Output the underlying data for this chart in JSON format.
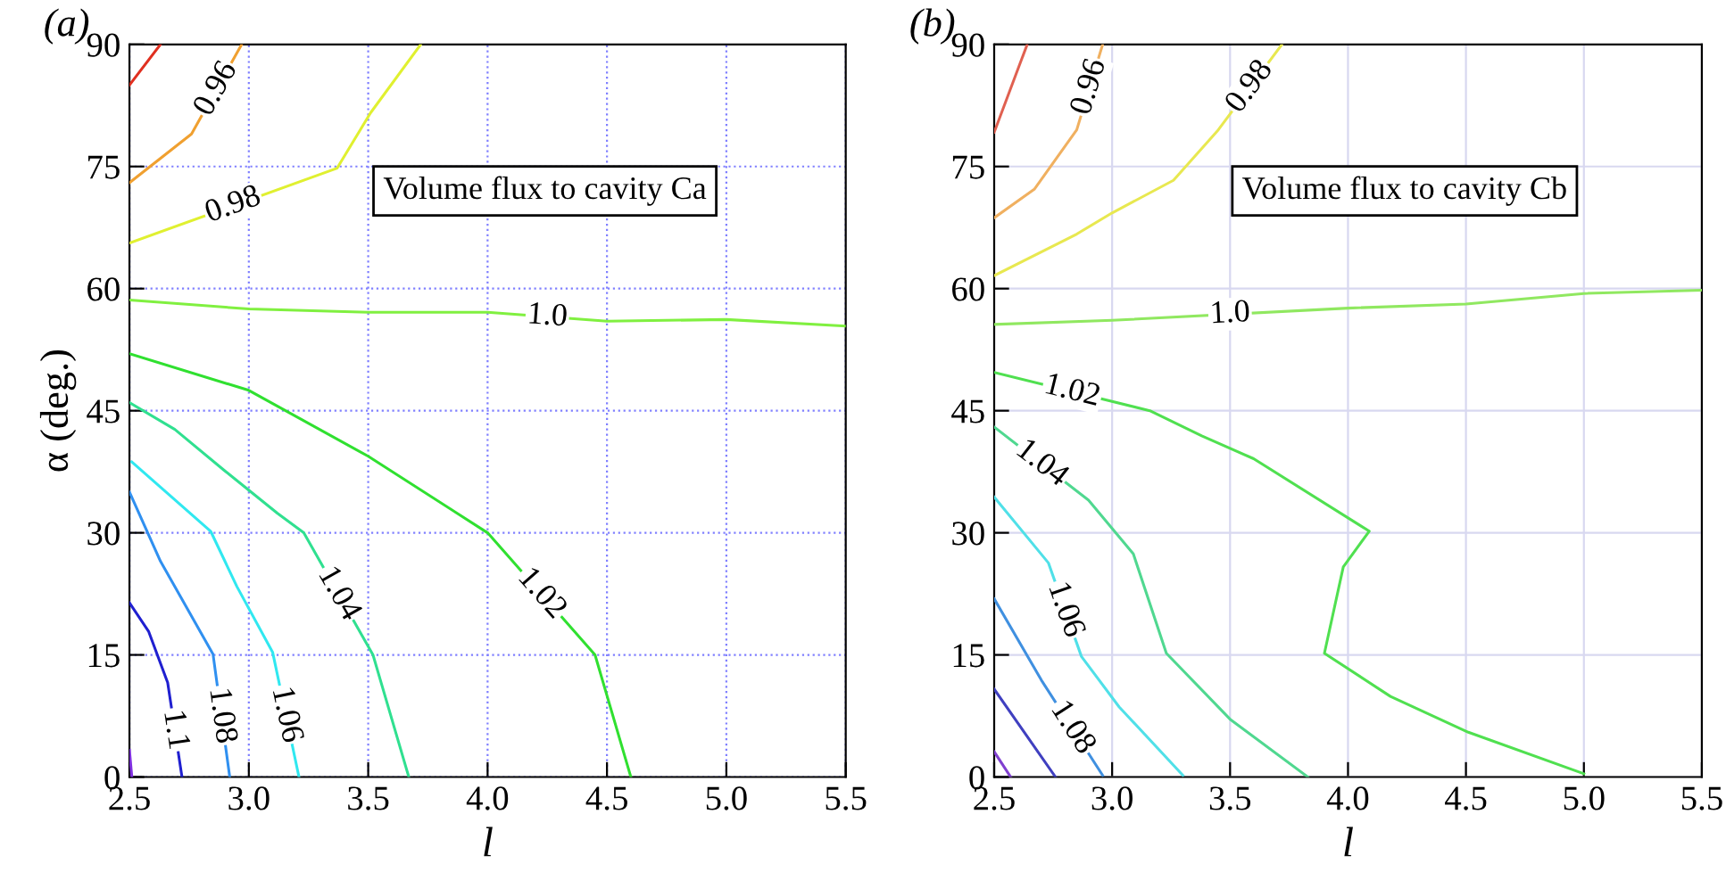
{
  "chart_data": [
    {
      "type": "line",
      "title": "(a)",
      "xlabel": "l",
      "ylabel": "α (deg.)",
      "annotations": [
        "Volume flux to cavity Ca"
      ],
      "xlim": [
        2.5,
        5.5
      ],
      "ylim": [
        0,
        90
      ],
      "xticks": [
        2.5,
        {
          "value": 3,
          "label": "3.0"
        },
        3.5,
        {
          "value": 4,
          "label": "4.0"
        },
        4.5,
        {
          "value": 5,
          "label": "5.0"
        },
        5.5
      ],
      "yticks": [
        0,
        15,
        30,
        45,
        60,
        75,
        90
      ],
      "grid": true,
      "legend": false,
      "marker": "none",
      "line_style": "solid",
      "series": [
        {
          "color": "#e03020",
          "x": [
            2.5,
            2.63
          ],
          "values": [
            85,
            90
          ]
        },
        {
          "name": "0.96",
          "color": "#f0a030",
          "x": [
            2.5,
            2.76,
            2.97
          ],
          "values": [
            73,
            79,
            90
          ]
        },
        {
          "name": "0.98",
          "color": "#e0f030",
          "x": [
            2.5,
            3.37,
            3.51,
            3.72
          ],
          "values": [
            65.6,
            74.8,
            81.6,
            90
          ]
        },
        {
          "name": "1.0",
          "color": "#80f040",
          "x": [
            2.5,
            3,
            3.5,
            4,
            4.5,
            5,
            5.5
          ],
          "values": [
            58.6,
            57.5,
            57.1,
            57.1,
            56,
            56.2,
            55.4
          ]
        },
        {
          "name": "1.02",
          "color": "#30e030",
          "x": [
            2.5,
            3,
            3.5,
            4,
            4.45,
            4.6
          ],
          "values": [
            52,
            47.5,
            39.4,
            30,
            15,
            0
          ]
        },
        {
          "name": "1.04",
          "color": "#30e090",
          "x": [
            2.5,
            2.69,
            2.9,
            3.12,
            3.23,
            3.52,
            3.67
          ],
          "values": [
            46,
            42.7,
            37.6,
            32.4,
            30,
            15,
            0
          ]
        },
        {
          "name": "1.06",
          "color": "#30e8f0",
          "x": [
            2.51,
            2.84,
            2.95,
            3.1,
            3.21
          ],
          "values": [
            38.7,
            30.2,
            23.4,
            15.3,
            0
          ]
        },
        {
          "name": "1.08",
          "color": "#3090f0",
          "x": [
            2.5,
            2.63,
            2.85,
            2.92
          ],
          "values": [
            35,
            26.5,
            15.1,
            0
          ]
        },
        {
          "name": "1.1",
          "color": "#2020d0",
          "x": [
            2.5,
            2.58,
            2.66,
            2.72
          ],
          "values": [
            21.4,
            17.9,
            11.6,
            0
          ]
        },
        {
          "color": "#8030e0",
          "x": [
            2.5,
            2.51
          ],
          "values": [
            3.3,
            0
          ]
        }
      ]
    },
    {
      "type": "line",
      "title": "(b)",
      "xlabel": "l",
      "annotations": [
        "Volume flux to cavity Cb"
      ],
      "xlim": [
        2.5,
        5.5
      ],
      "ylim": [
        0,
        90
      ],
      "xticks": [
        2.5,
        {
          "value": 3,
          "label": "3.0"
        },
        3.5,
        {
          "value": 4,
          "label": "4.0"
        },
        4.5,
        {
          "value": 5,
          "label": "5.0"
        },
        5.5
      ],
      "yticks": [
        0,
        15,
        30,
        45,
        60,
        75,
        90
      ],
      "grid": true,
      "legend": false,
      "marker": "none",
      "line_style": "solid",
      "series": [
        {
          "color": "#e06050",
          "x": [
            2.5,
            2.64
          ],
          "values": [
            79.2,
            90
          ]
        },
        {
          "name": "0.96",
          "color": "#f0b060",
          "x": [
            2.5,
            2.67,
            2.85,
            2.96
          ],
          "values": [
            68.7,
            72.2,
            79.5,
            90
          ]
        },
        {
          "name": "0.98",
          "color": "#e8e850",
          "x": [
            2.5,
            2.85,
            3.0,
            3.26,
            3.45,
            3.72
          ],
          "values": [
            61.6,
            66.7,
            69.3,
            73.3,
            79.5,
            90
          ]
        },
        {
          "name": "1.0",
          "color": "#90e860",
          "x": [
            2.5,
            3,
            4,
            4.5,
            5,
            5.5
          ],
          "values": [
            55.6,
            56.1,
            57.6,
            58.1,
            59.4,
            59.8
          ]
        },
        {
          "name": "1.02",
          "color": "#50e050",
          "x": [
            2.5,
            3.16,
            3.38,
            3.6,
            4.09,
            3.98,
            3.9,
            4.18,
            4.51,
            5.0
          ],
          "values": [
            49.7,
            45,
            41.9,
            39.1,
            30.2,
            25.8,
            15.2,
            9.9,
            5.5,
            0.4
          ]
        },
        {
          "name": "1.04",
          "color": "#50d890",
          "x": [
            2.5,
            2.9,
            3.09,
            3.23,
            3.5,
            3.83
          ],
          "values": [
            43,
            34,
            27.4,
            15.2,
            7.1,
            0
          ]
        },
        {
          "name": "1.06",
          "color": "#50e0e8",
          "x": [
            2.5,
            2.73,
            2.87,
            3.03,
            3.3
          ],
          "values": [
            34.4,
            26.3,
            14.8,
            8.6,
            0.2
          ]
        },
        {
          "name": "1.08",
          "color": "#4090e0",
          "x": [
            2.5,
            2.7,
            2.96
          ],
          "values": [
            21.9,
            11.9,
            0.2
          ]
        },
        {
          "color": "#4040c0",
          "x": [
            2.5,
            2.76
          ],
          "values": [
            10.8,
            0
          ]
        },
        {
          "color": "#8040d0",
          "x": [
            2.5,
            2.57
          ],
          "values": [
            3.1,
            0
          ]
        }
      ]
    }
  ]
}
